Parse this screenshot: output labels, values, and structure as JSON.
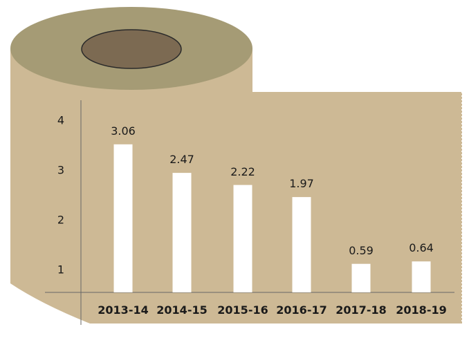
{
  "chart_data": {
    "type": "bar",
    "title": "",
    "xlabel": "",
    "ylabel": "",
    "categories": [
      "2013-14",
      "2014-15",
      "2015-16",
      "2016-17",
      "2017-18",
      "2018-19"
    ],
    "values": [
      3.06,
      2.47,
      2.22,
      1.97,
      0.59,
      0.64
    ],
    "data_labels": [
      "3.06",
      "2.47",
      "2.22",
      "1.97",
      "0.59",
      "0.64"
    ],
    "yticks": [
      1,
      2,
      3,
      4
    ],
    "ytick_labels": [
      "1",
      "2",
      "3",
      "4"
    ],
    "ylim": [
      0,
      4
    ],
    "grid": false,
    "legend": "none"
  },
  "colors": {
    "roll_body": "#CDB995",
    "roll_top": "#A59B75",
    "roll_core": "#7C6A52",
    "axis": "#666666",
    "bar": "#ffffff"
  }
}
